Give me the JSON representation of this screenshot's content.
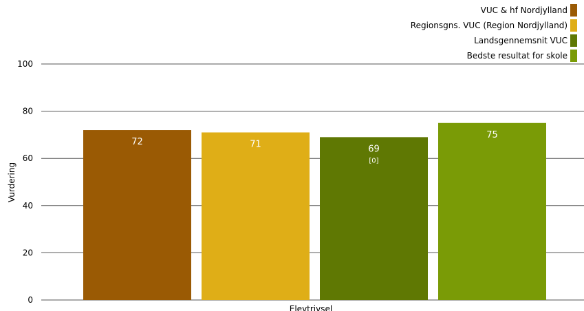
{
  "chart_data": {
    "type": "bar",
    "xlabel": "Elevtrivsel",
    "ylabel": "Vurdering",
    "ylim": [
      0,
      100
    ],
    "yticks": [
      0,
      20,
      40,
      60,
      80,
      100
    ],
    "grid": true,
    "legend_position": "top-right",
    "categories": [
      "Elevtrivsel"
    ],
    "series": [
      {
        "name": "VUC & hf Nordjylland",
        "values": [
          72
        ],
        "label": "72",
        "color": "#9a5a04"
      },
      {
        "name": "Regionsgns. VUC (Region Nordjylland)",
        "values": [
          71
        ],
        "label": "71",
        "color": "#dfae17"
      },
      {
        "name": "Landsgennemsnit VUC",
        "values": [
          69
        ],
        "label": "69",
        "sublabel": "[0]",
        "color": "#5f7803"
      },
      {
        "name": "Bedste resultat for skole",
        "values": [
          75
        ],
        "label": "75",
        "color": "#7a9b06"
      }
    ]
  }
}
